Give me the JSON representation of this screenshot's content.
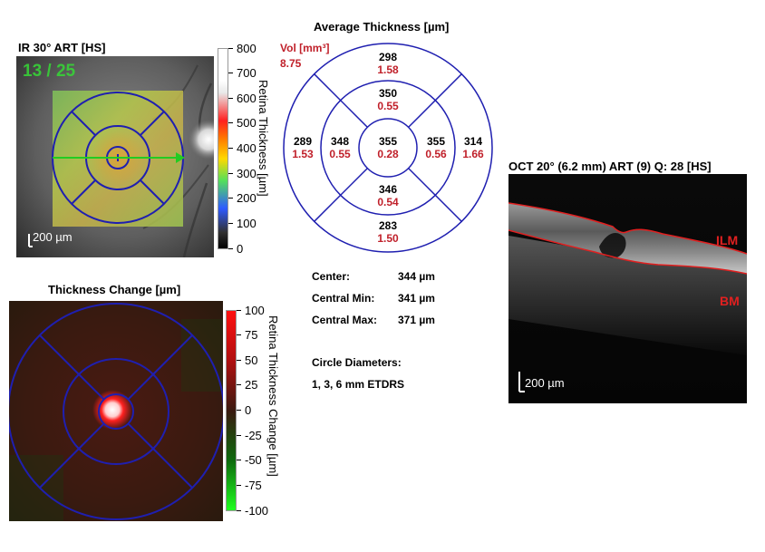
{
  "ir_panel": {
    "title": "IR 30° ART [HS]",
    "frame_counter": "13 / 25",
    "scale_label": "200 µm",
    "colorbar_ticks": [
      "800",
      "700",
      "600",
      "500",
      "400",
      "300",
      "200",
      "100",
      "0"
    ],
    "colorbar_label": "Retina Thickness [µm]"
  },
  "etdrs": {
    "title": "Average Thickness [µm]",
    "vol_label": "Vol [mm³]",
    "vol_value": "8.75",
    "sectors": {
      "outer_superior": {
        "thickness": "298",
        "volume": "1.58"
      },
      "inner_superior": {
        "thickness": "350",
        "volume": "0.55"
      },
      "outer_nasal_left": {
        "thickness": "289",
        "volume": "1.53"
      },
      "inner_left": {
        "thickness": "348",
        "volume": "0.55"
      },
      "center": {
        "thickness": "355",
        "volume": "0.28"
      },
      "inner_right": {
        "thickness": "355",
        "volume": "0.56"
      },
      "outer_right": {
        "thickness": "314",
        "volume": "1.66"
      },
      "inner_inferior": {
        "thickness": "346",
        "volume": "0.54"
      },
      "outer_inferior": {
        "thickness": "283",
        "volume": "1.50"
      }
    }
  },
  "stats": {
    "center_label": "Center:",
    "center_value": "344 µm",
    "min_label": "Central Min:",
    "min_value": "341 µm",
    "max_label": "Central Max:",
    "max_value": "371 µm",
    "diam_label": "Circle Diameters:",
    "diam_value": "1, 3, 6 mm ETDRS"
  },
  "change_panel": {
    "title": "Thickness Change [µm]",
    "colorbar_ticks": [
      "100",
      "75",
      "50",
      "25",
      "0",
      "-25",
      "-50",
      "-75",
      "-100"
    ],
    "colorbar_label": "Retina Thickness Change [µm]"
  },
  "oct_panel": {
    "title": "OCT 20° (6.2 mm) ART (9) Q: 28 [HS]",
    "ilm_label": "ILM",
    "bm_label": "BM",
    "scale_label": "200 µm"
  },
  "colors": {
    "etdrs_line": "#1f1fb0",
    "volume_red": "#c0202a",
    "scan_arrow": "#22cc22",
    "counter_green": "#36d936",
    "segmentation_red": "#e02020"
  }
}
